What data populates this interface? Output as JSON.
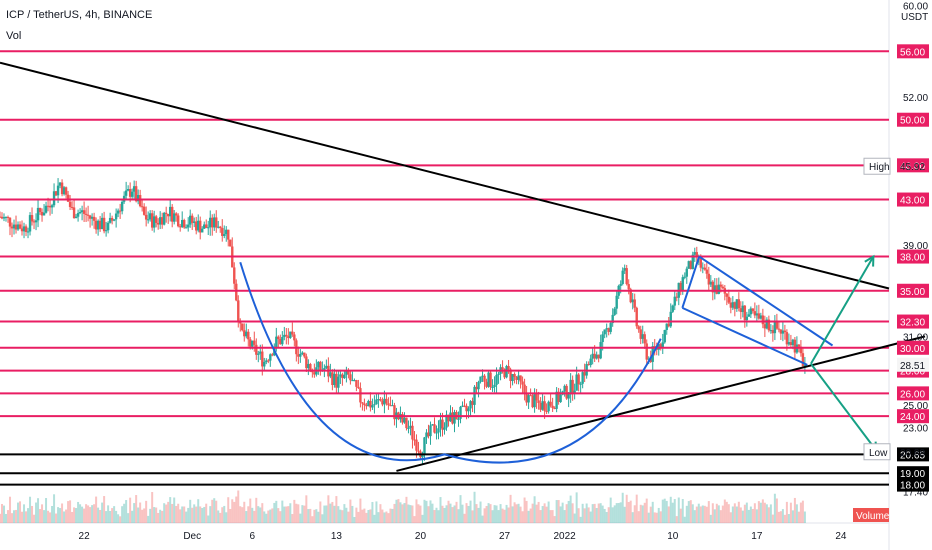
{
  "header": {
    "symbol_line": "ICP / TetherUS, 4h, BINANCE",
    "vol_label": "Vol"
  },
  "chart_data": {
    "type": "line",
    "title": "ICP / TetherUS, 4h, BINANCE",
    "ylabel": "USDT",
    "ylim": [
      17.0,
      60.5
    ],
    "y_ticks": [
      60.0,
      52.0,
      39.0,
      31.0,
      25.0,
      23.0,
      17.4
    ],
    "x_ticks": [
      "22",
      "Dec",
      "6",
      "13",
      "20",
      "27",
      "2022",
      "10",
      "17",
      "24"
    ],
    "x_tick_days": [
      -9,
      0,
      5,
      12,
      19,
      26,
      31,
      40,
      47,
      54
    ],
    "xlim_days": [
      -16,
      58
    ],
    "grid": false,
    "colors": {
      "up": "#26a69a",
      "down": "#ef5350",
      "level_red": "#e91e63",
      "level_black": "#000000",
      "trendline": "#000000",
      "pattern": "#1e60d8",
      "arrow": "#16a085"
    },
    "horizontal_levels": [
      {
        "price": 56.0,
        "label": "56.00",
        "color": "#e91e63"
      },
      {
        "price": 50.0,
        "label": "50.00",
        "color": "#e91e63"
      },
      {
        "price": 46.0,
        "label": "46.00",
        "color": "#e91e63"
      },
      {
        "price": 43.0,
        "label": "43.00",
        "color": "#e91e63"
      },
      {
        "price": 38.0,
        "label": "38.00",
        "color": "#e91e63"
      },
      {
        "price": 35.0,
        "label": "35.00",
        "color": "#e91e63"
      },
      {
        "price": 32.3,
        "label": "32.30",
        "color": "#e91e63"
      },
      {
        "price": 30.0,
        "label": "30.00",
        "color": "#e91e63"
      },
      {
        "price": 28.0,
        "label": "28.00",
        "color": "#e91e63"
      },
      {
        "price": 26.0,
        "label": "26.00",
        "color": "#e91e63"
      },
      {
        "price": 24.0,
        "label": "24.00",
        "color": "#e91e63"
      },
      {
        "price": 20.65,
        "label": "20.65",
        "color": "#000000"
      },
      {
        "price": 19.0,
        "label": "19.00",
        "color": "#000000"
      },
      {
        "price": 18.0,
        "label": "18.00",
        "color": "#000000"
      }
    ],
    "markers": [
      {
        "name": "High",
        "price": 45.92,
        "label": "45.92"
      },
      {
        "name": "Low",
        "price": 20.88,
        "label": "20.88"
      },
      {
        "name": "Last",
        "price": 28.51,
        "label": "28.51"
      }
    ],
    "price_path": [
      [
        -16,
        41.5
      ],
      [
        -14,
        40.5
      ],
      [
        -12,
        42.5
      ],
      [
        -11,
        44.5
      ],
      [
        -10,
        42.0
      ],
      [
        -9,
        41.8
      ],
      [
        -8,
        41.0
      ],
      [
        -7,
        40.5
      ],
      [
        -6,
        42.5
      ],
      [
        -5,
        44.0
      ],
      [
        -4,
        41.5
      ],
      [
        -3,
        41.0
      ],
      [
        -2,
        42.0
      ],
      [
        -1,
        41.2
      ],
      [
        0,
        41.0
      ],
      [
        1,
        40.5
      ],
      [
        2,
        41.0
      ],
      [
        3,
        40.0
      ],
      [
        3.5,
        36.0
      ],
      [
        4,
        31.5
      ],
      [
        5,
        30.0
      ],
      [
        6,
        28.8
      ],
      [
        7,
        30.5
      ],
      [
        8,
        31.0
      ],
      [
        9,
        29.5
      ],
      [
        10,
        28.0
      ],
      [
        11,
        28.2
      ],
      [
        12,
        27.0
      ],
      [
        13,
        27.5
      ],
      [
        14,
        25.5
      ],
      [
        15,
        25.0
      ],
      [
        16,
        25.5
      ],
      [
        17,
        24.0
      ],
      [
        18,
        23.0
      ],
      [
        19,
        21.0
      ],
      [
        20,
        22.8
      ],
      [
        21,
        23.5
      ],
      [
        22,
        24.0
      ],
      [
        23,
        24.5
      ],
      [
        24,
        27.5
      ],
      [
        25,
        27.0
      ],
      [
        26,
        28.0
      ],
      [
        27,
        27.2
      ],
      [
        28,
        25.5
      ],
      [
        29,
        25.0
      ],
      [
        30,
        25.2
      ],
      [
        31,
        26.0
      ],
      [
        32,
        27.0
      ],
      [
        33,
        28.5
      ],
      [
        34,
        30.0
      ],
      [
        35,
        33.0
      ],
      [
        36,
        37.0
      ],
      [
        37,
        32.0
      ],
      [
        38,
        29.0
      ],
      [
        39,
        30.5
      ],
      [
        40,
        33.5
      ],
      [
        41,
        36.5
      ],
      [
        42,
        38.0
      ],
      [
        43,
        35.5
      ],
      [
        44,
        35.0
      ],
      [
        45,
        34.0
      ],
      [
        46,
        33.0
      ],
      [
        47,
        32.5
      ],
      [
        48,
        32.0
      ],
      [
        49,
        31.5
      ],
      [
        50,
        30.5
      ],
      [
        51,
        28.5
      ]
    ],
    "annotations": {
      "descending_trendline": [
        [
          -16,
          55.0
        ],
        [
          58,
          35.2
        ]
      ],
      "ascending_trendline": [
        [
          17,
          19.2
        ],
        [
          61,
          31.0
        ]
      ],
      "rounding_bottom": {
        "start": [
          4,
          37.5
        ],
        "bottom": [
          21,
          20.65
        ],
        "end": [
          39,
          30.8
        ]
      },
      "falling_channel_top": [
        [
          42.2,
          38.0
        ],
        [
          53.3,
          30.2
        ]
      ],
      "falling_channel_bottom": [
        [
          40.8,
          33.5
        ],
        [
          51.2,
          28.5
        ]
      ],
      "arrow_up": {
        "from": [
          51.5,
          28.6
        ],
        "to": [
          56.7,
          38.0
        ]
      },
      "arrow_down": {
        "from": [
          51.5,
          28.6
        ],
        "to": [
          57.0,
          20.9
        ]
      }
    }
  },
  "volume_badge": "Volume"
}
